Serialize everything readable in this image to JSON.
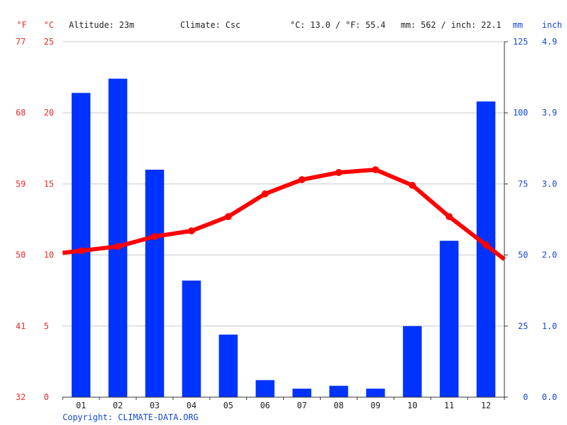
{
  "header": {
    "f_unit": "°F",
    "c_unit": "°C",
    "altitude": "Altitude: 23m",
    "climate": "Climate: Csc",
    "temp_summary": "°C: 13.0 / °F: 55.4",
    "precip_summary": "mm: 562 / inch: 22.1",
    "mm_unit": "mm",
    "inch_unit": "inch"
  },
  "footer": {
    "copyright": "Copyright: CLIMATE-DATA.ORG"
  },
  "colors": {
    "temperature": "#ff0000",
    "precipitation": "#0033ff",
    "grid": "#c8c8c8",
    "fahrenheit_axis": "#e8292c",
    "inch_axis": "#1446d6"
  },
  "chart_data": {
    "type": "bar",
    "categories": [
      "01",
      "02",
      "03",
      "04",
      "05",
      "06",
      "07",
      "08",
      "09",
      "10",
      "11",
      "12"
    ],
    "series": [
      {
        "kind": "bar",
        "axis": "right",
        "values": [
          107,
          112,
          80,
          41,
          22,
          6,
          3,
          4,
          3,
          25,
          55,
          104
        ]
      },
      {
        "kind": "line",
        "axis": "left",
        "values": [
          10.3,
          10.6,
          11.3,
          11.7,
          12.7,
          14.3,
          15.3,
          15.8,
          16.0,
          14.9,
          12.7,
          10.7
        ]
      }
    ],
    "left_axis_c": {
      "ylim": [
        0,
        25
      ],
      "ticks": [
        "0",
        "5",
        "10",
        "15",
        "20",
        "25"
      ]
    },
    "left_axis_f": {
      "ticks": [
        "32",
        "41",
        "50",
        "59",
        "68",
        "77"
      ]
    },
    "right_axis_mm": {
      "ylim": [
        0,
        125
      ],
      "ticks": [
        "0",
        "25",
        "50",
        "75",
        "100",
        "125"
      ]
    },
    "right_axis_inch": {
      "ticks": [
        "0.0",
        "1.0",
        "2.0",
        "3.0",
        "3.9",
        "4.9"
      ]
    },
    "grid": true
  }
}
